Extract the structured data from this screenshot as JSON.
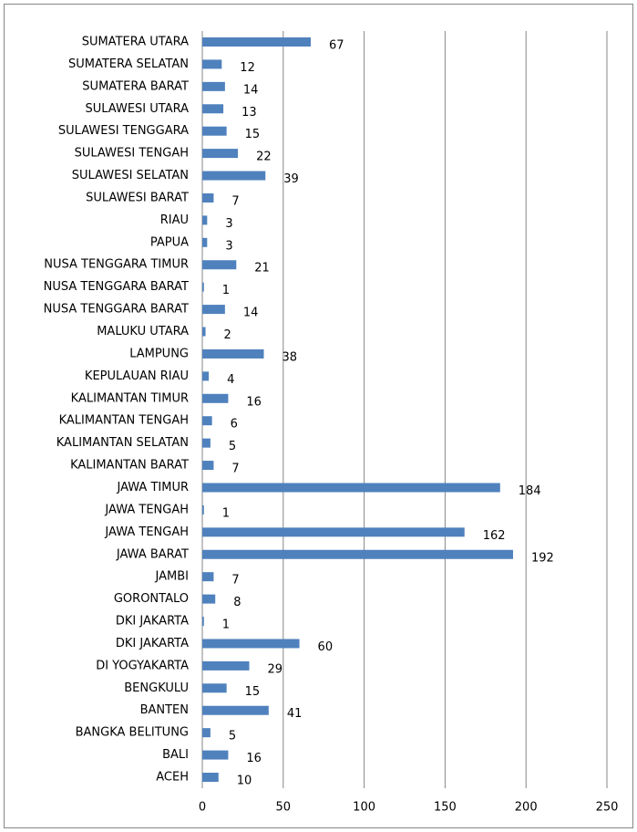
{
  "chart_data": {
    "type": "bar",
    "orientation": "horizontal",
    "categories": [
      "SUMATERA UTARA",
      "SUMATERA SELATAN",
      "SUMATERA BARAT",
      "SULAWESI UTARA",
      "SULAWESI TENGGARA",
      "SULAWESI TENGAH",
      "SULAWESI SELATAN",
      "SULAWESI BARAT",
      "RIAU",
      "PAPUA",
      "NUSA TENGGARA TIMUR",
      "NUSA TENGGARA BARAT ",
      "NUSA TENGGARA BARAT",
      "MALUKU UTARA",
      "LAMPUNG",
      "KEPULAUAN RIAU",
      "KALIMANTAN TIMUR",
      "KALIMANTAN TENGAH",
      "KALIMANTAN SELATAN",
      "KALIMANTAN BARAT",
      "JAWA TIMUR",
      "JAWA TENGAH ",
      "JAWA TENGAH",
      "JAWA BARAT",
      "JAMBI",
      "GORONTALO",
      "DKI JAKARTA ",
      "DKI JAKARTA",
      "DI YOGYAKARTA",
      "BENGKULU",
      "BANTEN",
      "BANGKA BELITUNG",
      "BALI",
      "ACEH"
    ],
    "values": [
      67,
      12,
      14,
      13,
      15,
      22,
      39,
      7,
      3,
      3,
      21,
      1,
      14,
      2,
      38,
      4,
      16,
      6,
      5,
      7,
      184,
      1,
      162,
      192,
      7,
      8,
      1,
      60,
      29,
      15,
      41,
      5,
      16,
      10
    ],
    "color": "#4f81bd",
    "xlim": [
      0,
      250
    ],
    "xticks": [
      0,
      50,
      100,
      150,
      200,
      250
    ],
    "grid": true
  }
}
